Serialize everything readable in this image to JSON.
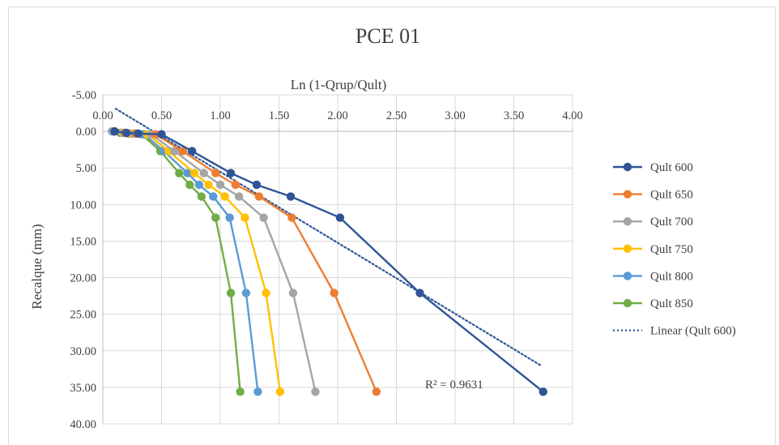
{
  "chart_data": {
    "type": "scatter",
    "title": "PCE 01",
    "xlabel": "Ln (1-Qrup/Qult)",
    "ylabel": "Recalque (mm)",
    "xlim": [
      0.0,
      4.0
    ],
    "ylim": [
      -5.0,
      40.0
    ],
    "y_inverted": true,
    "x_ticks": [
      "0.00",
      "0.50",
      "1.00",
      "1.50",
      "2.00",
      "2.50",
      "3.00",
      "3.50",
      "4.00"
    ],
    "y_ticks": [
      "-5.00",
      "0.00",
      "5.00",
      "10.00",
      "15.00",
      "20.00",
      "25.00",
      "30.00",
      "35.00",
      "40.00"
    ],
    "x_axis_position": "top",
    "grid": true,
    "legend_position": "right",
    "series": [
      {
        "name": "Qult 600",
        "color": "#2f5597",
        "x": [
          0.1,
          0.2,
          0.3,
          0.5,
          0.76,
          1.09,
          1.31,
          1.6,
          2.02,
          2.7,
          3.75
        ],
        "y": [
          0.0,
          0.2,
          0.3,
          0.4,
          2.7,
          5.7,
          7.3,
          8.9,
          11.8,
          22.1,
          35.6
        ]
      },
      {
        "name": "Qult 650",
        "color": "#ed7d31",
        "x": [
          0.1,
          0.19,
          0.28,
          0.45,
          0.68,
          0.96,
          1.13,
          1.33,
          1.61,
          1.97,
          2.33
        ],
        "y": [
          0.0,
          0.2,
          0.3,
          0.4,
          2.7,
          5.7,
          7.3,
          8.9,
          11.8,
          22.1,
          35.6
        ]
      },
      {
        "name": "Qult 700",
        "color": "#a5a5a5",
        "x": [
          0.09,
          0.18,
          0.26,
          0.41,
          0.61,
          0.86,
          1.0,
          1.16,
          1.37,
          1.62,
          1.81
        ],
        "y": [
          0.0,
          0.2,
          0.3,
          0.4,
          2.7,
          5.7,
          7.3,
          8.9,
          11.8,
          22.1,
          35.6
        ]
      },
      {
        "name": "Qult 750",
        "color": "#ffc000",
        "x": [
          0.09,
          0.17,
          0.24,
          0.38,
          0.56,
          0.78,
          0.9,
          1.04,
          1.21,
          1.39,
          1.51
        ],
        "y": [
          0.0,
          0.2,
          0.3,
          0.4,
          2.7,
          5.7,
          7.3,
          8.9,
          11.8,
          22.1,
          35.6
        ]
      },
      {
        "name": "Qult 800",
        "color": "#5b9bd5",
        "x": [
          0.08,
          0.16,
          0.23,
          0.35,
          0.52,
          0.72,
          0.82,
          0.94,
          1.08,
          1.22,
          1.32
        ],
        "y": [
          0.0,
          0.2,
          0.3,
          0.4,
          2.7,
          5.7,
          7.3,
          8.9,
          11.8,
          22.1,
          35.6
        ]
      },
      {
        "name": "Qult 850",
        "color": "#70ad47",
        "x": [
          0.08,
          0.15,
          0.22,
          0.33,
          0.49,
          0.65,
          0.74,
          0.84,
          0.96,
          1.09,
          1.17
        ],
        "y": [
          0.0,
          0.2,
          0.3,
          0.4,
          2.7,
          5.7,
          7.3,
          8.9,
          11.8,
          22.1,
          35.6
        ]
      }
    ],
    "trendline": {
      "name": "Linear (Qult 600)",
      "of_series": "Qult 600",
      "style": "dotted",
      "color": "#2f5597",
      "x": [
        0.11,
        3.74
      ],
      "y": [
        -3.1,
        32.1
      ],
      "annotation": "R² = 0.9631"
    }
  }
}
